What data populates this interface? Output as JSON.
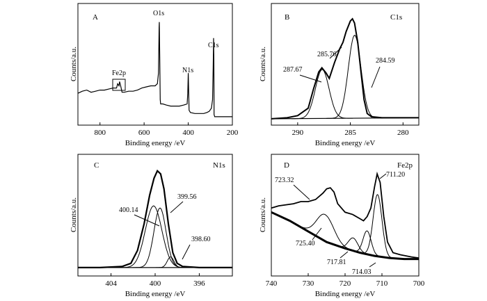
{
  "chart_data": [
    {
      "panel": "A",
      "type": "line",
      "xlabel": "Binding energy /eV",
      "ylabel": "Counts/a.u.",
      "xlim": [
        900,
        200
      ],
      "xticks": [
        800,
        600,
        400,
        200
      ],
      "xtick_labels": [
        "800",
        "600",
        "400",
        "200"
      ],
      "annotations": [
        {
          "text": "O1s",
          "x": 531
        },
        {
          "text": "C1s",
          "x": 285
        },
        {
          "text": "N1s",
          "x": 400
        },
        {
          "text": "Fe2p",
          "x": 711
        }
      ],
      "series": [
        {
          "points": [
            [
              900,
              0.26
            ],
            [
              880,
              0.28
            ],
            [
              860,
              0.29
            ],
            [
              840,
              0.27
            ],
            [
              820,
              0.28
            ],
            [
              800,
              0.29
            ],
            [
              780,
              0.29
            ],
            [
              760,
              0.3
            ],
            [
              740,
              0.31
            ],
            [
              725,
              0.31
            ],
            [
              720,
              0.35
            ],
            [
              714,
              0.33
            ],
            [
              711,
              0.37
            ],
            [
              705,
              0.32
            ],
            [
              700,
              0.27
            ],
            [
              690,
              0.27
            ],
            [
              670,
              0.28
            ],
            [
              650,
              0.28
            ],
            [
              630,
              0.29
            ],
            [
              610,
              0.31
            ],
            [
              590,
              0.32
            ],
            [
              570,
              0.33
            ],
            [
              550,
              0.33
            ],
            [
              540,
              0.35
            ],
            [
              535,
              0.45
            ],
            [
              532,
              0.88
            ],
            [
              531,
              0.93
            ],
            [
              529,
              0.55
            ],
            [
              527,
              0.2
            ],
            [
              525,
              0.16
            ],
            [
              515,
              0.16
            ],
            [
              500,
              0.15
            ],
            [
              480,
              0.14
            ],
            [
              460,
              0.14
            ],
            [
              440,
              0.14
            ],
            [
              420,
              0.15
            ],
            [
              405,
              0.16
            ],
            [
              402,
              0.26
            ],
            [
              400,
              0.45
            ],
            [
              398,
              0.28
            ],
            [
              396,
              0.1
            ],
            [
              390,
              0.08
            ],
            [
              370,
              0.07
            ],
            [
              350,
              0.07
            ],
            [
              330,
              0.07
            ],
            [
              315,
              0.08
            ],
            [
              305,
              0.09
            ],
            [
              295,
              0.12
            ],
            [
              290,
              0.2
            ],
            [
              287,
              0.5
            ],
            [
              285,
              0.78
            ],
            [
              284,
              0.6
            ],
            [
              283,
              0.06
            ],
            [
              280,
              0.04
            ],
            [
              270,
              0.04
            ],
            [
              260,
              0.04
            ],
            [
              250,
              0.04
            ],
            [
              240,
              0.04
            ],
            [
              230,
              0.04
            ],
            [
              220,
              0.04
            ],
            [
              210,
              0.04
            ],
            [
              200,
              0.04
            ]
          ]
        }
      ]
    },
    {
      "panel": "B",
      "title": "C1s",
      "type": "line",
      "xlabel": "Binding energy /eV",
      "ylabel": "Counts/a.u.",
      "xlim": [
        292.5,
        278.5
      ],
      "xticks": [
        290,
        285,
        280
      ],
      "xtick_labels": [
        "290",
        "285",
        "280"
      ],
      "peaks": [
        287.67,
        285.76,
        284.59
      ],
      "peak_labels": [
        "287.67",
        "285.76",
        "284.59"
      ],
      "series": [
        {
          "name": "experimental",
          "points": [
            [
              292.5,
              0.02
            ],
            [
              291,
              0.03
            ],
            [
              290,
              0.05
            ],
            [
              289,
              0.12
            ],
            [
              288.5,
              0.3
            ],
            [
              288,
              0.46
            ],
            [
              287.7,
              0.5
            ],
            [
              287.3,
              0.45
            ],
            [
              287,
              0.4
            ],
            [
              286.5,
              0.55
            ],
            [
              286,
              0.68
            ],
            [
              285.7,
              0.74
            ],
            [
              285.4,
              0.84
            ],
            [
              285,
              0.94
            ],
            [
              284.8,
              0.96
            ],
            [
              284.6,
              0.92
            ],
            [
              284.3,
              0.74
            ],
            [
              284,
              0.47
            ],
            [
              283.7,
              0.2
            ],
            [
              283.4,
              0.07
            ],
            [
              283,
              0.04
            ],
            [
              282,
              0.03
            ],
            [
              281,
              0.03
            ],
            [
              280,
              0.03
            ],
            [
              279,
              0.03
            ],
            [
              278.5,
              0.03
            ]
          ]
        },
        {
          "name": "fit 287.67",
          "center": 287.67,
          "height": 0.46,
          "sigma": 0.65
        },
        {
          "name": "fit 284.59",
          "center": 284.59,
          "height": 0.78,
          "sigma": 0.6
        },
        {
          "name": "background",
          "points": [
            [
              292.5,
              0.02
            ],
            [
              278.5,
              0.03
            ]
          ]
        }
      ]
    },
    {
      "panel": "C",
      "title": "N1s",
      "type": "line",
      "xlabel": "Binding energy /eV",
      "ylabel": "Counts/a.u.",
      "xlim": [
        407,
        393
      ],
      "xticks": [
        404,
        400,
        396
      ],
      "xtick_labels": [
        "404",
        "400",
        "396"
      ],
      "peaks": [
        400.14,
        399.56,
        398.6
      ],
      "peak_labels": [
        "400.14",
        "399.56",
        "398.60"
      ],
      "series": [
        {
          "name": "experimental",
          "points": [
            [
              407,
              0.04
            ],
            [
              405,
              0.04
            ],
            [
              403,
              0.05
            ],
            [
              402.2,
              0.08
            ],
            [
              401.6,
              0.2
            ],
            [
              401,
              0.45
            ],
            [
              400.5,
              0.72
            ],
            [
              400.1,
              0.88
            ],
            [
              399.8,
              0.95
            ],
            [
              399.5,
              0.92
            ],
            [
              399.2,
              0.78
            ],
            [
              398.8,
              0.45
            ],
            [
              398.4,
              0.18
            ],
            [
              398,
              0.08
            ],
            [
              397.5,
              0.05
            ],
            [
              396,
              0.04
            ],
            [
              393,
              0.04
            ]
          ]
        },
        {
          "name": "fit 400.14",
          "center": 400.14,
          "height": 0.58,
          "sigma": 0.75
        },
        {
          "name": "fit 399.56",
          "center": 399.56,
          "height": 0.56,
          "sigma": 0.55
        },
        {
          "name": "fit 398.60",
          "center": 398.6,
          "height": 0.1,
          "sigma": 0.3
        },
        {
          "name": "background",
          "points": [
            [
              407,
              0.04
            ],
            [
              393,
              0.04
            ]
          ]
        }
      ]
    },
    {
      "panel": "D",
      "title": "Fe2p",
      "type": "line",
      "xlabel": "Binding energy /eV",
      "ylabel": "Counts/a.u.",
      "xlim": [
        740,
        700
      ],
      "xticks": [
        740,
        730,
        720,
        710,
        700
      ],
      "xtick_labels": [
        "740",
        "730",
        "720",
        "710",
        "700"
      ],
      "peaks": [
        723.32,
        711.2,
        725.4,
        717.81,
        714.03
      ],
      "peak_labels": [
        "723.32",
        "711.20",
        "725.40",
        "717.81",
        "714.03"
      ],
      "series": [
        {
          "name": "experimental",
          "points": [
            [
              740,
              0.6
            ],
            [
              738,
              0.62
            ],
            [
              736,
              0.63
            ],
            [
              734,
              0.64
            ],
            [
              732,
              0.66
            ],
            [
              730,
              0.66
            ],
            [
              728,
              0.68
            ],
            [
              726,
              0.74
            ],
            [
              725,
              0.78
            ],
            [
              724,
              0.79
            ],
            [
              723,
              0.75
            ],
            [
              722,
              0.64
            ],
            [
              720,
              0.56
            ],
            [
              718,
              0.54
            ],
            [
              716,
              0.5
            ],
            [
              715,
              0.48
            ],
            [
              714,
              0.52
            ],
            [
              713,
              0.6
            ],
            [
              712,
              0.8
            ],
            [
              711.3,
              0.92
            ],
            [
              710.5,
              0.84
            ],
            [
              709.5,
              0.52
            ],
            [
              708.5,
              0.28
            ],
            [
              707,
              0.18
            ],
            [
              705,
              0.16
            ],
            [
              702,
              0.14
            ],
            [
              700,
              0.13
            ]
          ]
        },
        {
          "name": "fit 725.40",
          "center": 725.4,
          "height": 0.25,
          "sigma": 2.3
        },
        {
          "name": "fit 717.81",
          "center": 717.81,
          "height": 0.12,
          "sigma": 1.3
        },
        {
          "name": "fit 714.03",
          "center": 714.03,
          "height": 0.22,
          "sigma": 1.1
        },
        {
          "name": "fit 711.20",
          "center": 711.2,
          "height": 0.58,
          "sigma": 1.2
        },
        {
          "name": "background",
          "points": [
            [
              740,
              0.56
            ],
            [
              735,
              0.48
            ],
            [
              730,
              0.38
            ],
            [
              725,
              0.28
            ],
            [
              720,
              0.22
            ],
            [
              716,
              0.18
            ],
            [
              712,
              0.15
            ],
            [
              708,
              0.13
            ],
            [
              704,
              0.12
            ],
            [
              700,
              0.12
            ]
          ]
        }
      ]
    }
  ]
}
